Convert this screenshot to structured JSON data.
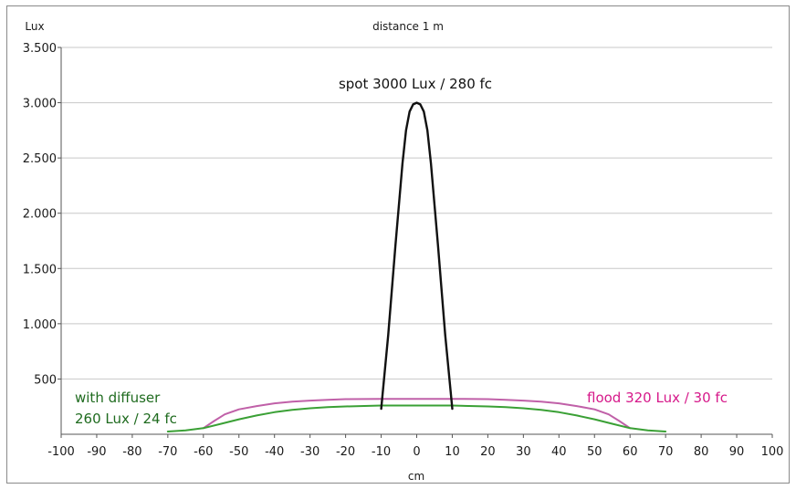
{
  "chart_data": {
    "type": "line",
    "title": "distance 1 m",
    "xlabel": "cm",
    "ylabel": "Lux",
    "xlim": [
      -100,
      100
    ],
    "ylim": [
      0,
      3500
    ],
    "x_ticks": [
      "-100",
      "-90",
      "-80",
      "-70",
      "-60",
      "-50",
      "-40",
      "-30",
      "-20",
      "-10",
      "0",
      "10",
      "20",
      "30",
      "40",
      "50",
      "60",
      "70",
      "80",
      "90",
      "100"
    ],
    "y_ticks": [
      "500",
      "1.000",
      "1.500",
      "2.000",
      "2.500",
      "3.000",
      "3.500"
    ],
    "y_tick_values": [
      500,
      1000,
      1500,
      2000,
      2500,
      3000,
      3500
    ],
    "x_tick_values": [
      -100,
      -90,
      -80,
      -70,
      -60,
      -50,
      -40,
      -30,
      -20,
      -10,
      0,
      10,
      20,
      30,
      40,
      50,
      60,
      70,
      80,
      90,
      100
    ],
    "grid": "horizontal",
    "series": [
      {
        "key": "spot",
        "color": "#111111",
        "x": [
          -10,
          -8,
          -6,
          -4,
          -3,
          -2,
          -1,
          0,
          1,
          2,
          3,
          4,
          6,
          8,
          10
        ],
        "y": [
          230,
          900,
          1700,
          2450,
          2750,
          2920,
          2985,
          3000,
          2985,
          2920,
          2750,
          2450,
          1700,
          900,
          230
        ]
      },
      {
        "key": "flood",
        "color": "#c060a8",
        "x": [
          -60,
          -57,
          -54,
          -50,
          -45,
          -40,
          -35,
          -30,
          -25,
          -20,
          -10,
          0,
          10,
          20,
          25,
          30,
          35,
          40,
          45,
          50,
          54,
          57,
          60
        ],
        "y": [
          55,
          120,
          180,
          225,
          255,
          280,
          295,
          305,
          312,
          318,
          320,
          320,
          320,
          318,
          312,
          305,
          295,
          280,
          255,
          225,
          180,
          120,
          55
        ]
      },
      {
        "key": "diffuser",
        "color": "#3aa035",
        "x": [
          -70,
          -65,
          -60,
          -55,
          -50,
          -45,
          -40,
          -35,
          -30,
          -25,
          -20,
          -10,
          0,
          10,
          20,
          25,
          30,
          35,
          40,
          45,
          50,
          55,
          60,
          65,
          70
        ],
        "y": [
          25,
          35,
          55,
          95,
          135,
          170,
          200,
          220,
          235,
          245,
          252,
          260,
          260,
          260,
          252,
          245,
          235,
          220,
          200,
          170,
          135,
          95,
          55,
          35,
          25
        ]
      }
    ],
    "annotations": [
      {
        "key": "spot",
        "text": "spot 3000 Lux / 280 fc",
        "color": "#111111"
      },
      {
        "key": "flood",
        "text": "flood 320 Lux / 30 fc",
        "color": "#d6198a"
      },
      {
        "key": "diffuser_line1",
        "text": "with diffuser",
        "color": "#1f6b1f"
      },
      {
        "key": "diffuser_line2",
        "text": "260 Lux / 24 fc",
        "color": "#1f6b1f"
      }
    ]
  }
}
